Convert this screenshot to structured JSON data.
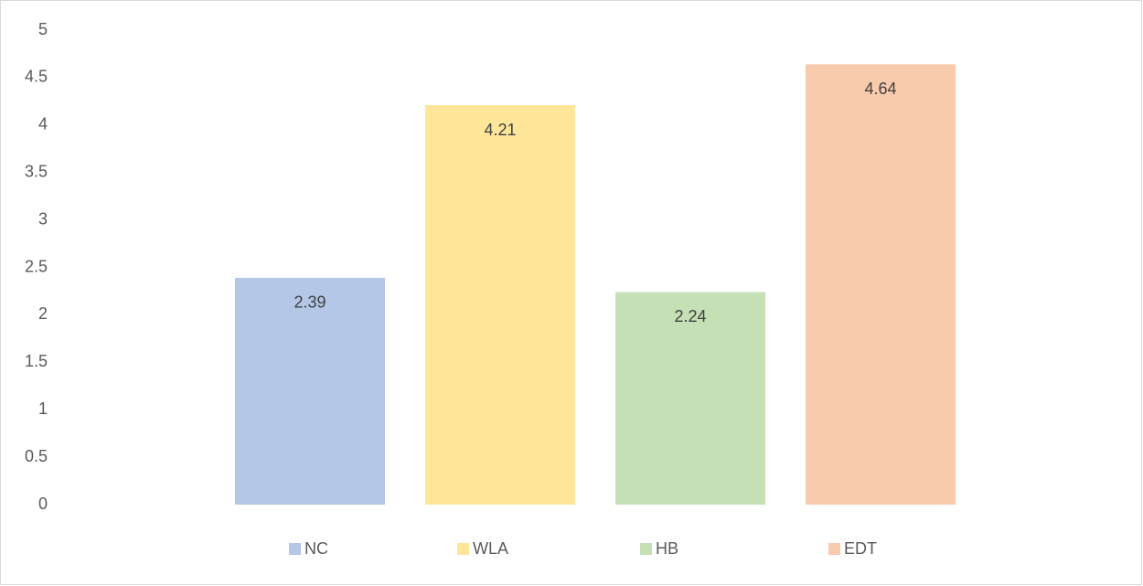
{
  "chart_data": {
    "type": "bar",
    "series": [
      {
        "name": "NC",
        "color": "#b4c7e7",
        "values": [
          2.39
        ]
      },
      {
        "name": "WLA",
        "color": "#ffe699",
        "values": [
          4.21
        ]
      },
      {
        "name": "HB",
        "color": "#c5e0b4",
        "values": [
          2.24
        ]
      },
      {
        "name": "EDT",
        "color": "#f8cbad",
        "values": [
          4.64
        ]
      }
    ],
    "ylim": [
      0,
      5
    ],
    "yticks": [
      0,
      0.5,
      1,
      1.5,
      2,
      2.5,
      3,
      3.5,
      4,
      4.5,
      5
    ],
    "grid": false,
    "legend": "bottom"
  }
}
